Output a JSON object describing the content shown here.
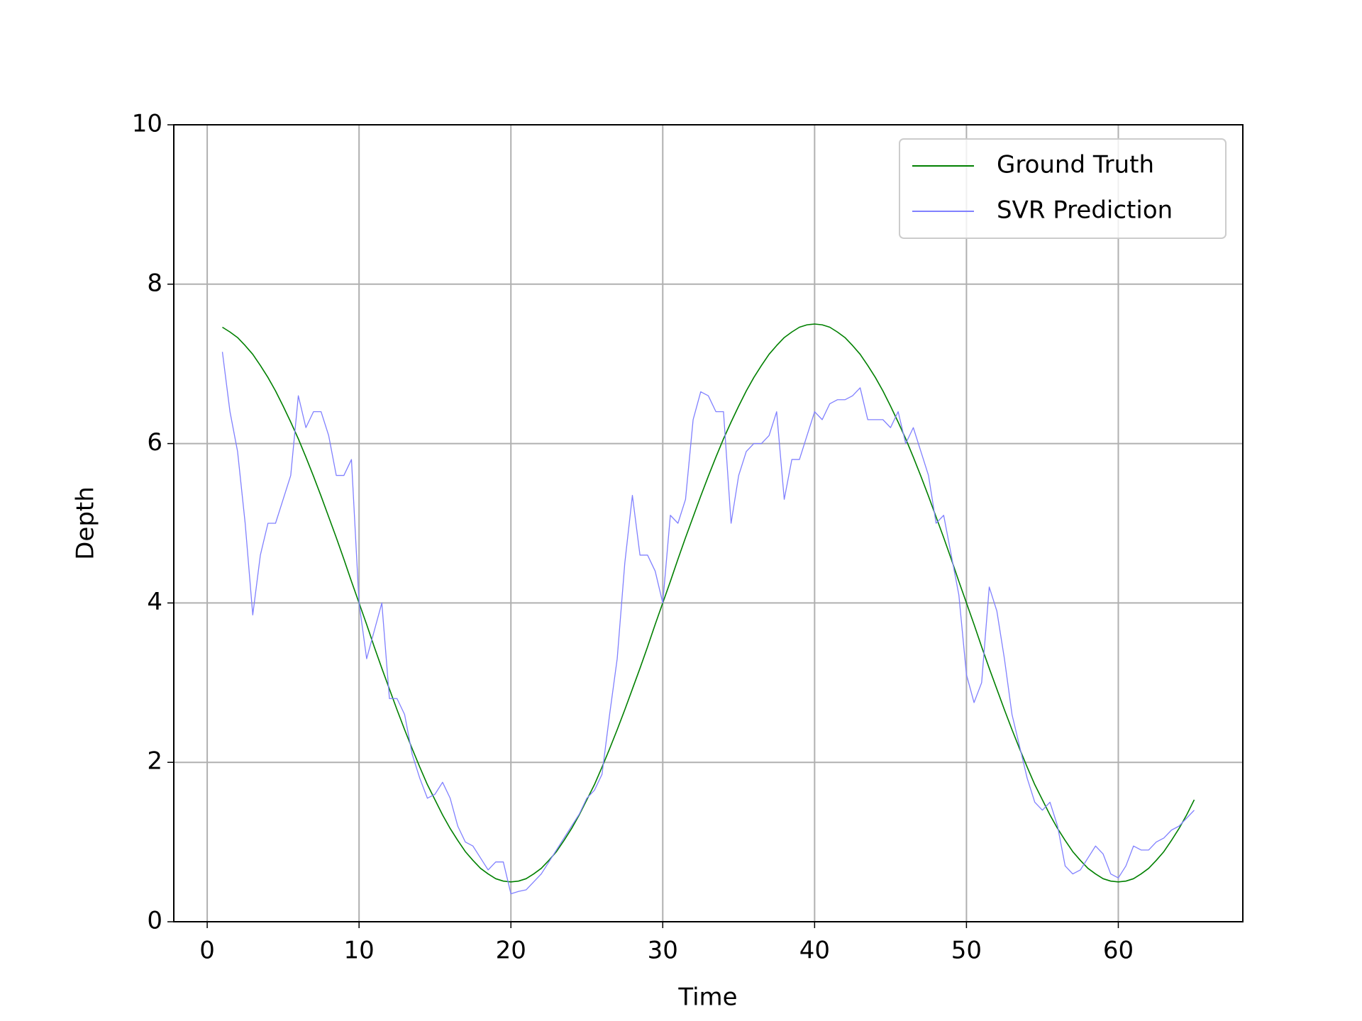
{
  "chart_data": {
    "type": "line",
    "xlabel": "Time",
    "ylabel": "Depth",
    "x": [
      1,
      1.5,
      2,
      2.5,
      3,
      3.5,
      4,
      4.5,
      5,
      5.5,
      6,
      6.5,
      7,
      7.5,
      8,
      8.5,
      9,
      9.5,
      10,
      10.5,
      11,
      11.5,
      12,
      12.5,
      13,
      13.5,
      14,
      14.5,
      15,
      15.5,
      16,
      16.5,
      17,
      17.5,
      18,
      18.5,
      19,
      19.5,
      20,
      20.5,
      21,
      21.5,
      22,
      22.5,
      23,
      23.5,
      24,
      24.5,
      25,
      25.5,
      26,
      26.5,
      27,
      27.5,
      28,
      28.5,
      29,
      29.5,
      30,
      30.5,
      31,
      31.5,
      32,
      32.5,
      33,
      33.5,
      34,
      34.5,
      35,
      35.5,
      36,
      36.5,
      37,
      37.5,
      38,
      38.5,
      39,
      39.5,
      40,
      40.5,
      41,
      41.5,
      42,
      42.5,
      43,
      43.5,
      44,
      44.5,
      45,
      45.5,
      46,
      46.5,
      47,
      47.5,
      48,
      48.5,
      49,
      49.5,
      50,
      50.5,
      51,
      51.5,
      52,
      52.5,
      53,
      53.5,
      54,
      54.5,
      55,
      55.5,
      56,
      56.5,
      57,
      57.5,
      58,
      58.5,
      59,
      59.5,
      60,
      60.5,
      61,
      61.5,
      62,
      62.5,
      63,
      63.5,
      64,
      64.5,
      65
    ],
    "series": [
      {
        "name": "Ground Truth",
        "color": "#008000",
        "values": [
          7.46,
          7.4,
          7.33,
          7.23,
          7.12,
          6.98,
          6.83,
          6.66,
          6.47,
          6.27,
          6.06,
          5.83,
          5.59,
          5.34,
          5.08,
          4.82,
          4.55,
          4.27,
          4.0,
          3.73,
          3.45,
          3.18,
          2.92,
          2.66,
          2.41,
          2.17,
          1.94,
          1.72,
          1.53,
          1.34,
          1.17,
          1.02,
          0.88,
          0.77,
          0.67,
          0.6,
          0.54,
          0.51,
          0.5,
          0.51,
          0.54,
          0.6,
          0.67,
          0.77,
          0.88,
          1.02,
          1.17,
          1.34,
          1.53,
          1.72,
          1.94,
          2.17,
          2.41,
          2.66,
          2.92,
          3.18,
          3.45,
          3.73,
          4.0,
          4.27,
          4.55,
          4.82,
          5.08,
          5.34,
          5.59,
          5.83,
          6.06,
          6.27,
          6.47,
          6.66,
          6.83,
          6.98,
          7.12,
          7.23,
          7.33,
          7.4,
          7.46,
          7.49,
          7.5,
          7.49,
          7.46,
          7.4,
          7.33,
          7.23,
          7.12,
          6.98,
          6.83,
          6.66,
          6.47,
          6.27,
          6.06,
          5.83,
          5.59,
          5.34,
          5.08,
          4.82,
          4.55,
          4.27,
          4.0,
          3.73,
          3.45,
          3.18,
          2.92,
          2.66,
          2.41,
          2.17,
          1.94,
          1.72,
          1.53,
          1.34,
          1.17,
          1.02,
          0.88,
          0.77,
          0.67,
          0.6,
          0.54,
          0.51,
          0.5,
          0.51,
          0.54,
          0.6,
          0.67,
          0.77,
          0.88,
          1.02,
          1.17,
          1.34,
          1.53
        ]
      },
      {
        "name": "SVR Prediction",
        "color": "#8080ff",
        "values": [
          7.15,
          6.4,
          5.9,
          5.0,
          3.85,
          4.6,
          5.0,
          5.0,
          5.3,
          5.6,
          6.6,
          6.2,
          6.4,
          6.4,
          6.1,
          5.6,
          5.6,
          5.8,
          4.0,
          3.3,
          3.65,
          4.0,
          2.8,
          2.8,
          2.6,
          2.1,
          1.8,
          1.55,
          1.6,
          1.75,
          1.55,
          1.2,
          1.0,
          0.95,
          0.8,
          0.65,
          0.75,
          0.75,
          0.35,
          0.38,
          0.4,
          0.5,
          0.6,
          0.75,
          0.9,
          1.05,
          1.2,
          1.35,
          1.55,
          1.65,
          1.85,
          2.6,
          3.3,
          4.5,
          5.35,
          4.6,
          4.6,
          4.4,
          4.0,
          5.1,
          5.0,
          5.3,
          6.3,
          6.65,
          6.6,
          6.4,
          6.4,
          5.0,
          5.6,
          5.9,
          6.0,
          6.0,
          6.1,
          6.4,
          5.3,
          5.8,
          5.8,
          6.1,
          6.4,
          6.3,
          6.5,
          6.55,
          6.55,
          6.6,
          6.7,
          6.3,
          6.3,
          6.3,
          6.2,
          6.4,
          6.0,
          6.2,
          5.9,
          5.6,
          5.0,
          5.1,
          4.6,
          4.1,
          3.1,
          2.75,
          3.0,
          4.2,
          3.9,
          3.3,
          2.6,
          2.2,
          1.8,
          1.5,
          1.4,
          1.5,
          1.2,
          0.7,
          0.6,
          0.65,
          0.8,
          0.95,
          0.85,
          0.6,
          0.55,
          0.7,
          0.95,
          0.9,
          0.9,
          1.0,
          1.05,
          1.15,
          1.2,
          1.3,
          1.4
        ]
      }
    ],
    "xlim": [
      -2.2,
      68.2
    ],
    "xticks": [
      0,
      10,
      20,
      30,
      40,
      50,
      60
    ],
    "ylim": [
      0,
      10
    ],
    "yticks": [
      0,
      2,
      4,
      6,
      8,
      10
    ],
    "grid": true,
    "legend": "upper right"
  }
}
